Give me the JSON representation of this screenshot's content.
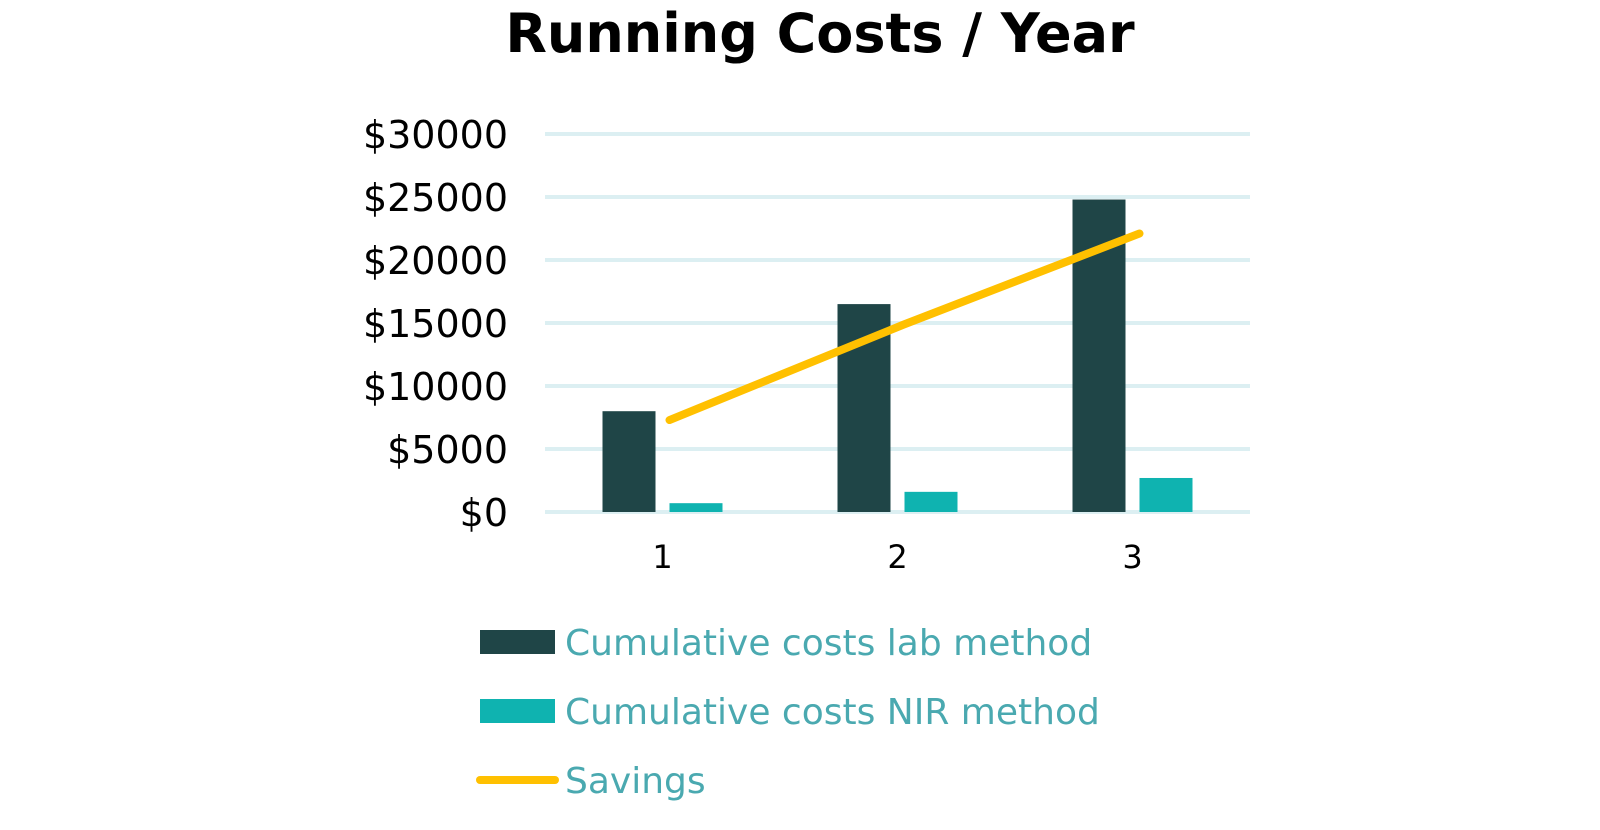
{
  "chart_data": {
    "type": "bar",
    "title": "Running Costs / Year",
    "xlabel": "",
    "ylabel": "",
    "categories": [
      "1",
      "2",
      "3"
    ],
    "y_tick_labels": [
      "$0",
      "$5000",
      "$10000",
      "$15000",
      "$20000",
      "$25000",
      "$30000"
    ],
    "y_tick_values": [
      0,
      5000,
      10000,
      15000,
      20000,
      25000,
      30000
    ],
    "ylim": [
      0,
      30000
    ],
    "grid": true,
    "legend_position": "bottom",
    "series": [
      {
        "name": "Cumulative costs lab method",
        "kind": "bar",
        "color": "#1f4547",
        "values": [
          8000,
          16500,
          24800
        ]
      },
      {
        "name": "Cumulative costs NIR method",
        "kind": "bar",
        "color": "#0fb3b0",
        "values": [
          700,
          1600,
          2700
        ]
      },
      {
        "name": "Savings",
        "kind": "line",
        "color": "#ffc000",
        "values": [
          7300,
          14900,
          22100
        ]
      }
    ],
    "gridline_color": "#dceff2",
    "legend_text_color": "#4aa9b0"
  }
}
